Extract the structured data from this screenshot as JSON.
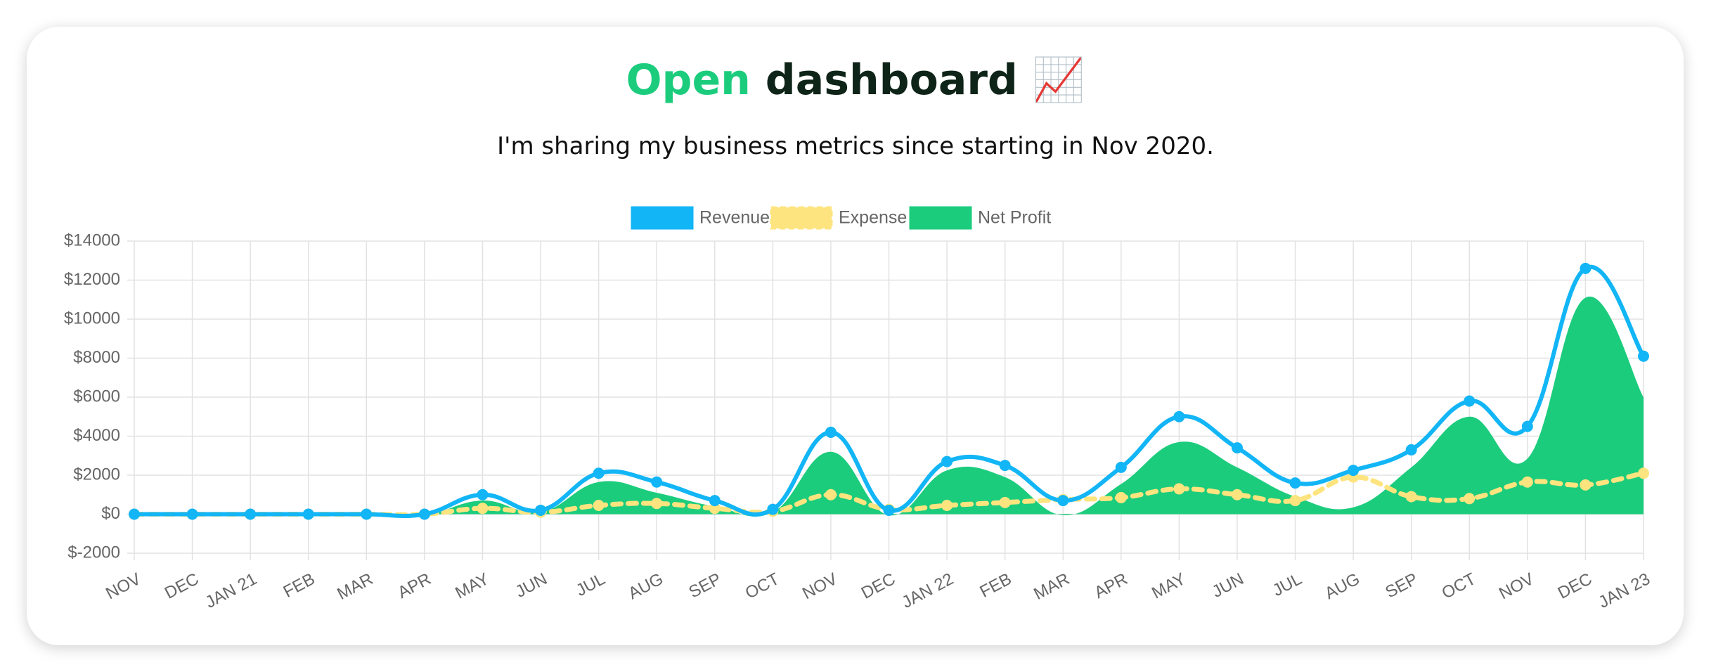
{
  "header": {
    "title_highlight": "Open",
    "title": "dashboard 📈",
    "subtitle": "I'm sharing my business metrics since starting in Nov 2020."
  },
  "chart_data": {
    "type": "line",
    "categories": [
      "NOV",
      "DEC",
      "JAN 21",
      "FEB",
      "MAR",
      "APR",
      "MAY",
      "JUN",
      "JUL",
      "AUG",
      "SEP",
      "OCT",
      "NOV",
      "DEC",
      "JAN 22",
      "FEB",
      "MAR",
      "APR",
      "MAY",
      "JUN",
      "JUL",
      "AUG",
      "SEP",
      "OCT",
      "NOV",
      "DEC",
      "JAN 23"
    ],
    "series": [
      {
        "name": "Revenue",
        "color": "#12b5f5",
        "style": "line",
        "values": [
          0,
          0,
          0,
          0,
          0,
          0,
          1000,
          200,
          2100,
          1650,
          700,
          250,
          4200,
          200,
          2700,
          2500,
          700,
          2400,
          5000,
          3400,
          1600,
          2250,
          3300,
          5800,
          4500,
          12600,
          8100
        ]
      },
      {
        "name": "Expense",
        "color": "#fde47f",
        "style": "dashed",
        "values": [
          0,
          0,
          0,
          0,
          0,
          0,
          300,
          100,
          450,
          550,
          300,
          150,
          1000,
          250,
          450,
          600,
          750,
          850,
          1300,
          1000,
          700,
          1900,
          900,
          800,
          1650,
          1500,
          2100
        ]
      },
      {
        "name": "Net Profit",
        "color": "#1ccc7d",
        "style": "area",
        "values": [
          -50,
          -50,
          -50,
          -50,
          -50,
          -50,
          700,
          100,
          1650,
          1100,
          400,
          100,
          3200,
          -50,
          2250,
          1900,
          -50,
          1550,
          3700,
          2400,
          900,
          350,
          2400,
          5000,
          2850,
          11100,
          6000
        ]
      }
    ],
    "ylim": [
      -2000,
      14000
    ],
    "yticks": [
      {
        "value": -2000,
        "label": "$-2000"
      },
      {
        "value": 0,
        "label": "$0"
      },
      {
        "value": 2000,
        "label": "$2000"
      },
      {
        "value": 4000,
        "label": "$4000"
      },
      {
        "value": 6000,
        "label": "$6000"
      },
      {
        "value": 8000,
        "label": "$8000"
      },
      {
        "value": 10000,
        "label": "$10000"
      },
      {
        "value": 12000,
        "label": "$12000"
      },
      {
        "value": 14000,
        "label": "$14000"
      }
    ],
    "grid": true,
    "legend": "top"
  }
}
